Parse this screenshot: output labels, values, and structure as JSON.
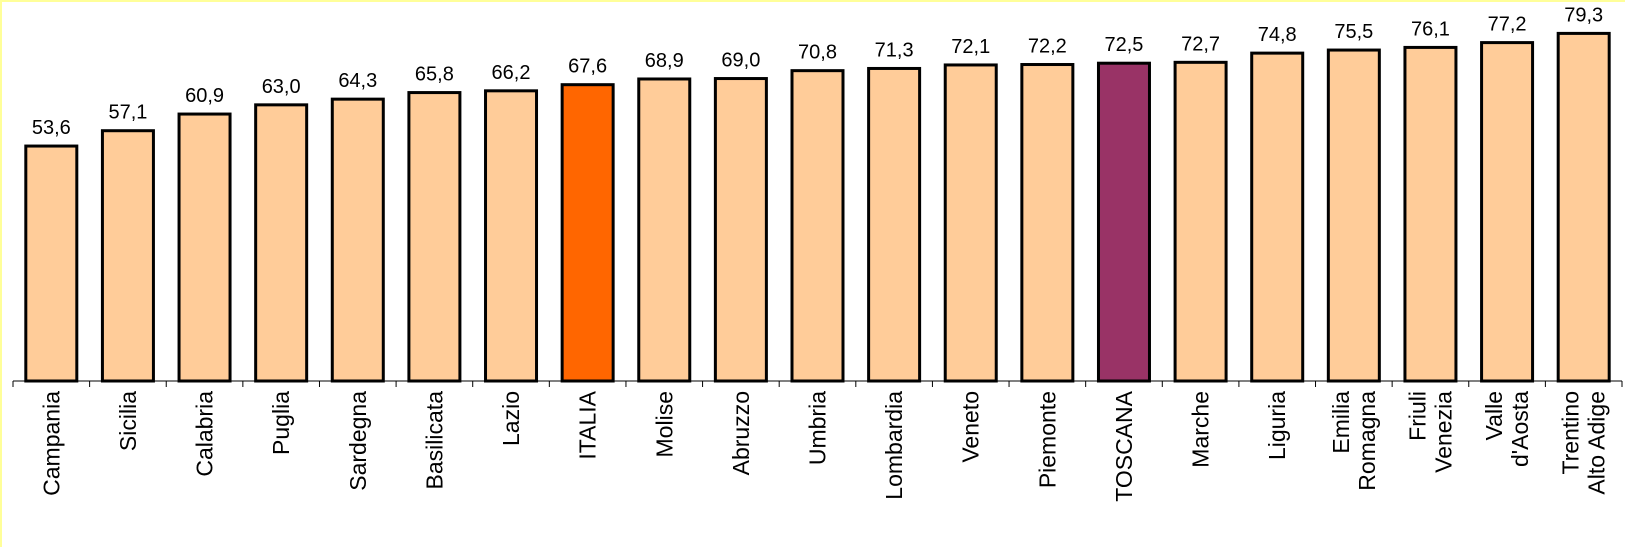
{
  "chart_data": {
    "type": "bar",
    "categories": [
      [
        "Campania"
      ],
      [
        "Sicilia"
      ],
      [
        "Calabria"
      ],
      [
        "Puglia"
      ],
      [
        "Sardegna"
      ],
      [
        "Basilicata"
      ],
      [
        "Lazio"
      ],
      [
        "ITALIA"
      ],
      [
        "Molise"
      ],
      [
        "Abruzzo"
      ],
      [
        "Umbria"
      ],
      [
        "Lombardia"
      ],
      [
        "Veneto"
      ],
      [
        "Piemonte"
      ],
      [
        "TOSCANA"
      ],
      [
        "Marche"
      ],
      [
        "Liguria"
      ],
      [
        "Emilia",
        "Romagna"
      ],
      [
        "Friuli",
        "Venezia"
      ],
      [
        "Valle",
        "d'Aosta"
      ],
      [
        "Trentino",
        "Alto Adige"
      ]
    ],
    "values": [
      53.6,
      57.1,
      60.9,
      63.0,
      64.3,
      65.8,
      66.2,
      67.6,
      68.9,
      69.0,
      70.8,
      71.3,
      72.1,
      72.2,
      72.5,
      72.7,
      74.8,
      75.5,
      76.1,
      77.2,
      79.3
    ],
    "value_labels": [
      "53,6",
      "57,1",
      "60,9",
      "63,0",
      "64,3",
      "65,8",
      "66,2",
      "67,6",
      "68,9",
      "69,0",
      "70,8",
      "71,3",
      "72,1",
      "72,2",
      "72,5",
      "72,7",
      "74,8",
      "75,5",
      "76,1",
      "77,2",
      "79,3"
    ],
    "ylim": [
      0,
      81.9
    ],
    "grid": false,
    "legend": "none",
    "colors": {
      "default": "#ffcc99",
      "ITALIA": "#ff6600",
      "TOSCANA": "#993366",
      "outline": "#000000"
    },
    "title": "",
    "xlabel": "",
    "ylabel": ""
  }
}
